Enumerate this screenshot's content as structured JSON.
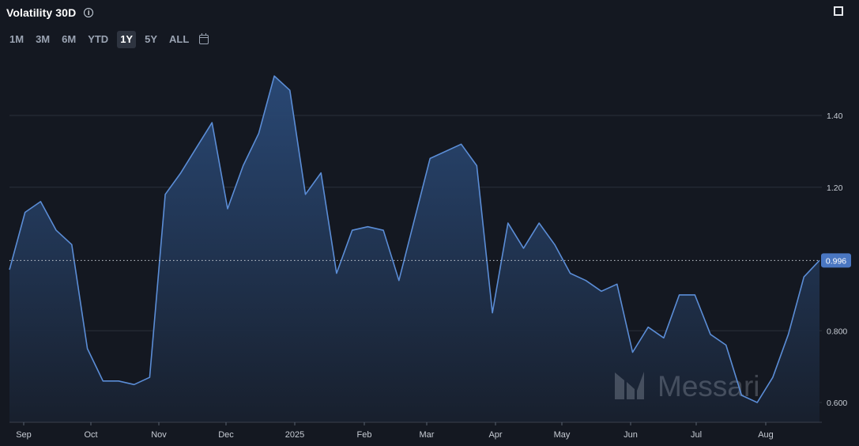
{
  "header": {
    "title": "Volatility 30D",
    "info_icon": "info-icon",
    "fullscreen_icon": "fullscreen-icon"
  },
  "range_buttons": [
    {
      "label": "1M",
      "active": false
    },
    {
      "label": "3M",
      "active": false
    },
    {
      "label": "6M",
      "active": false
    },
    {
      "label": "YTD",
      "active": false
    },
    {
      "label": "1Y",
      "active": true
    },
    {
      "label": "5Y",
      "active": false
    },
    {
      "label": "ALL",
      "active": false
    }
  ],
  "calendar_icon": "calendar-icon",
  "watermark": "Messari",
  "chart_data": {
    "type": "area",
    "title": "Volatility 30D",
    "xlabel": "",
    "ylabel": "",
    "x_ticks": [
      "Sep",
      "Oct",
      "Nov",
      "Dec",
      "2025",
      "Feb",
      "Mar",
      "Apr",
      "May",
      "Jun",
      "Jul",
      "Aug"
    ],
    "y_ticks": [
      "0.600",
      "0.800",
      "1.00",
      "1.20",
      "1.40"
    ],
    "ylim": [
      0.57,
      1.55
    ],
    "grid": true,
    "current_value": 0.996,
    "current_value_label": "0.996",
    "line_color": "#5b8dd6",
    "background_color": "#141821",
    "series": [
      {
        "values": [
          0.97,
          1.13,
          1.16,
          1.08,
          1.04,
          0.75,
          0.66,
          0.66,
          0.65,
          0.67,
          1.18,
          1.24,
          1.31,
          1.38,
          1.14,
          1.26,
          1.35,
          1.51,
          1.47,
          1.18,
          1.24,
          0.96,
          1.08,
          1.09,
          1.08,
          0.94,
          1.11,
          1.28,
          1.3,
          1.32,
          1.26,
          0.85,
          1.1,
          1.03,
          1.1,
          1.04,
          0.96,
          0.94,
          0.91,
          0.93,
          0.74,
          0.81,
          0.78,
          0.9,
          0.9,
          0.79,
          0.76,
          0.62,
          0.6,
          0.67,
          0.79,
          0.95,
          0.996
        ]
      }
    ]
  }
}
